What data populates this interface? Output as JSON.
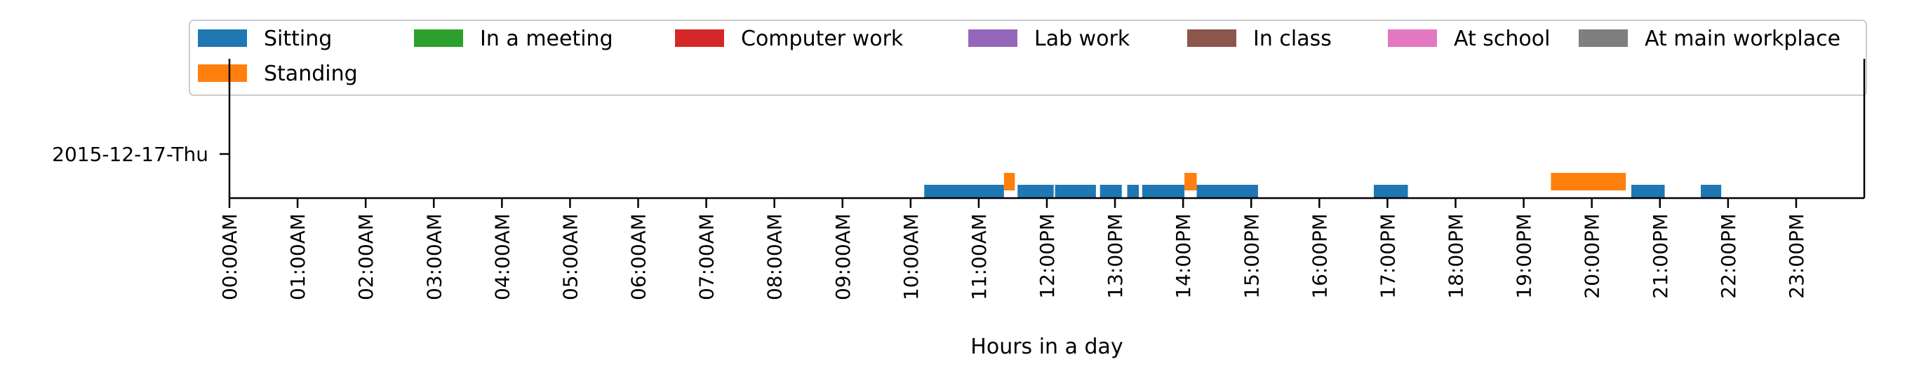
{
  "chart_data": {
    "type": "timeline",
    "xlabel": "Hours in a day",
    "ylabel": "",
    "xlim": [
      0,
      24
    ],
    "x_ticks": [
      "00:00AM",
      "01:00AM",
      "02:00AM",
      "03:00AM",
      "04:00AM",
      "05:00AM",
      "06:00AM",
      "07:00AM",
      "08:00AM",
      "09:00AM",
      "10:00AM",
      "11:00AM",
      "12:00PM",
      "13:00PM",
      "14:00PM",
      "15:00PM",
      "16:00PM",
      "17:00PM",
      "18:00PM",
      "19:00PM",
      "20:00PM",
      "21:00PM",
      "22:00PM",
      "23:00PM"
    ],
    "y_categories": [
      "2015-12-17-Thu"
    ],
    "grid": false,
    "legend_position": "top",
    "legend": [
      {
        "label": "Sitting",
        "color": "#1f77b4"
      },
      {
        "label": "In a meeting",
        "color": "#2ca02c"
      },
      {
        "label": "Computer work",
        "color": "#d62728"
      },
      {
        "label": "Lab work",
        "color": "#9467bd"
      },
      {
        "label": "In class",
        "color": "#8c564b"
      },
      {
        "label": "At school",
        "color": "#e377c2"
      },
      {
        "label": "At main workplace",
        "color": "#7f7f7f"
      },
      {
        "label": "Standing",
        "color": "#ff7f0e"
      }
    ],
    "series": [
      {
        "name": "Sitting",
        "color": "#1f77b4",
        "intervals": [
          [
            10.2,
            11.37
          ],
          [
            11.57,
            12.1
          ],
          [
            12.12,
            12.72
          ],
          [
            12.78,
            13.1
          ],
          [
            13.18,
            13.35
          ],
          [
            13.4,
            14.02
          ],
          [
            14.2,
            15.1
          ],
          [
            16.8,
            17.3
          ],
          [
            20.58,
            21.07
          ],
          [
            21.6,
            21.9
          ]
        ]
      },
      {
        "name": "Standing",
        "color": "#ff7f0e",
        "intervals": [
          [
            11.37,
            11.53
          ],
          [
            14.02,
            14.2
          ],
          [
            19.4,
            20.5
          ]
        ]
      }
    ]
  }
}
